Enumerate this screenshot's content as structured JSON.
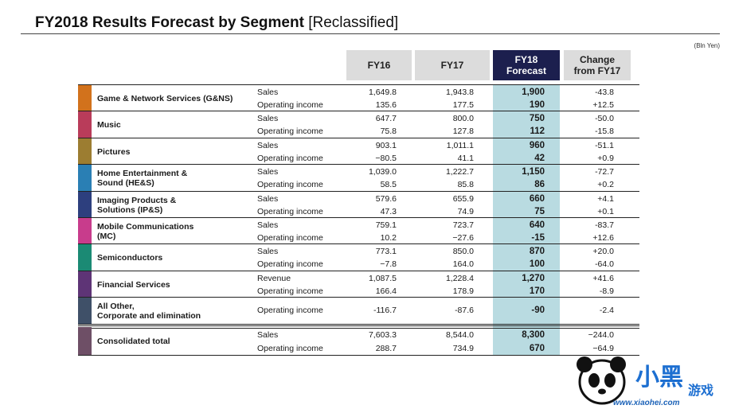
{
  "title": "FY2018 Results Forecast by Segment",
  "title_suffix": "[Reclassified]",
  "unit": "(Bln Yen)",
  "columns": {
    "fy16": "FY16",
    "fy17": "FY17",
    "fy18_line1": "FY18",
    "fy18_line2": "Forecast",
    "change_line1": "Change",
    "change_line2": "from FY17"
  },
  "segments": [
    {
      "name": [
        "Game & Network Services (G&NS)"
      ],
      "color": "#d2721c",
      "rows": [
        {
          "metric": "Sales",
          "fy16": "1,649.8",
          "fy17": "1,943.8",
          "fy18": "1,900",
          "change": "-43.8"
        },
        {
          "metric": "Operating income",
          "fy16": "135.6",
          "fy17": "177.5",
          "fy18": "190",
          "change": "+12.5"
        }
      ]
    },
    {
      "name": [
        "Music"
      ],
      "color": "#b93c5a",
      "rows": [
        {
          "metric": "Sales",
          "fy16": "647.7",
          "fy17": "800.0",
          "fy18": "750",
          "change": "-50.0"
        },
        {
          "metric": "Operating income",
          "fy16": "75.8",
          "fy17": "127.8",
          "fy18": "112",
          "change": "-15.8"
        }
      ]
    },
    {
      "name": [
        "Pictures"
      ],
      "color": "#9c7d31",
      "rows": [
        {
          "metric": "Sales",
          "fy16": "903.1",
          "fy17": "1,011.1",
          "fy18": "960",
          "change": "-51.1"
        },
        {
          "metric": "Operating income",
          "fy16": "−80.5",
          "fy17": "41.1",
          "fy18": "42",
          "change": "+0.9"
        }
      ]
    },
    {
      "name": [
        "Home Entertainment &",
        "Sound (HE&S)"
      ],
      "color": "#2a7fb4",
      "rows": [
        {
          "metric": "Sales",
          "fy16": "1,039.0",
          "fy17": "1,222.7",
          "fy18": "1,150",
          "change": "-72.7"
        },
        {
          "metric": "Operating income",
          "fy16": "58.5",
          "fy17": "85.8",
          "fy18": "86",
          "change": "+0.2"
        }
      ]
    },
    {
      "name": [
        "Imaging Products &",
        "Solutions (IP&S)"
      ],
      "color": "#2d3f7e",
      "rows": [
        {
          "metric": "Sales",
          "fy16": "579.6",
          "fy17": "655.9",
          "fy18": "660",
          "change": "+4.1"
        },
        {
          "metric": "Operating income",
          "fy16": "47.3",
          "fy17": "74.9",
          "fy18": "75",
          "change": "+0.1"
        }
      ]
    },
    {
      "name": [
        "Mobile Communications",
        "(MC)"
      ],
      "color": "#c83c8c",
      "rows": [
        {
          "metric": "Sales",
          "fy16": "759.1",
          "fy17": "723.7",
          "fy18": "640",
          "change": "-83.7"
        },
        {
          "metric": "Operating income",
          "fy16": "10.2",
          "fy17": "−27.6",
          "fy18": "-15",
          "change": "+12.6"
        }
      ]
    },
    {
      "name": [
        "Semiconductors"
      ],
      "color": "#1b8a74",
      "rows": [
        {
          "metric": "Sales",
          "fy16": "773.1",
          "fy17": "850.0",
          "fy18": "870",
          "change": "+20.0"
        },
        {
          "metric": "Operating income",
          "fy16": "−7.8",
          "fy17": "164.0",
          "fy18": "100",
          "change": "-64.0"
        }
      ]
    },
    {
      "name": [
        "Financial Services"
      ],
      "color": "#5e3476",
      "rows": [
        {
          "metric": "Revenue",
          "fy16": "1,087.5",
          "fy17": "1,228.4",
          "fy18": "1,270",
          "change": "+41.6"
        },
        {
          "metric": "Operating income",
          "fy16": "166.4",
          "fy17": "178.9",
          "fy18": "170",
          "change": "-8.9"
        }
      ]
    },
    {
      "name": [
        "All Other,",
        "Corporate and elimination"
      ],
      "color": "#3f5068",
      "rows": [
        {
          "metric": "Operating income",
          "fy16": "-116.7",
          "fy17": "-87.6",
          "fy18": "-90",
          "change": "-2.4"
        }
      ]
    }
  ],
  "total": {
    "name": [
      "Consolidated total"
    ],
    "color": "#6e4f66",
    "rows": [
      {
        "metric": "Sales",
        "fy16": "7,603.3",
        "fy17": "8,544.0",
        "fy18": "8,300",
        "change": "−244.0"
      },
      {
        "metric": "Operating income",
        "fy16": "288.7",
        "fy17": "734.9",
        "fy18": "670",
        "change": "−64.9"
      }
    ]
  },
  "watermark": {
    "text": "www.xiaohei.com",
    "logo_chars": "小黑",
    "logo_sub": "游戏"
  }
}
